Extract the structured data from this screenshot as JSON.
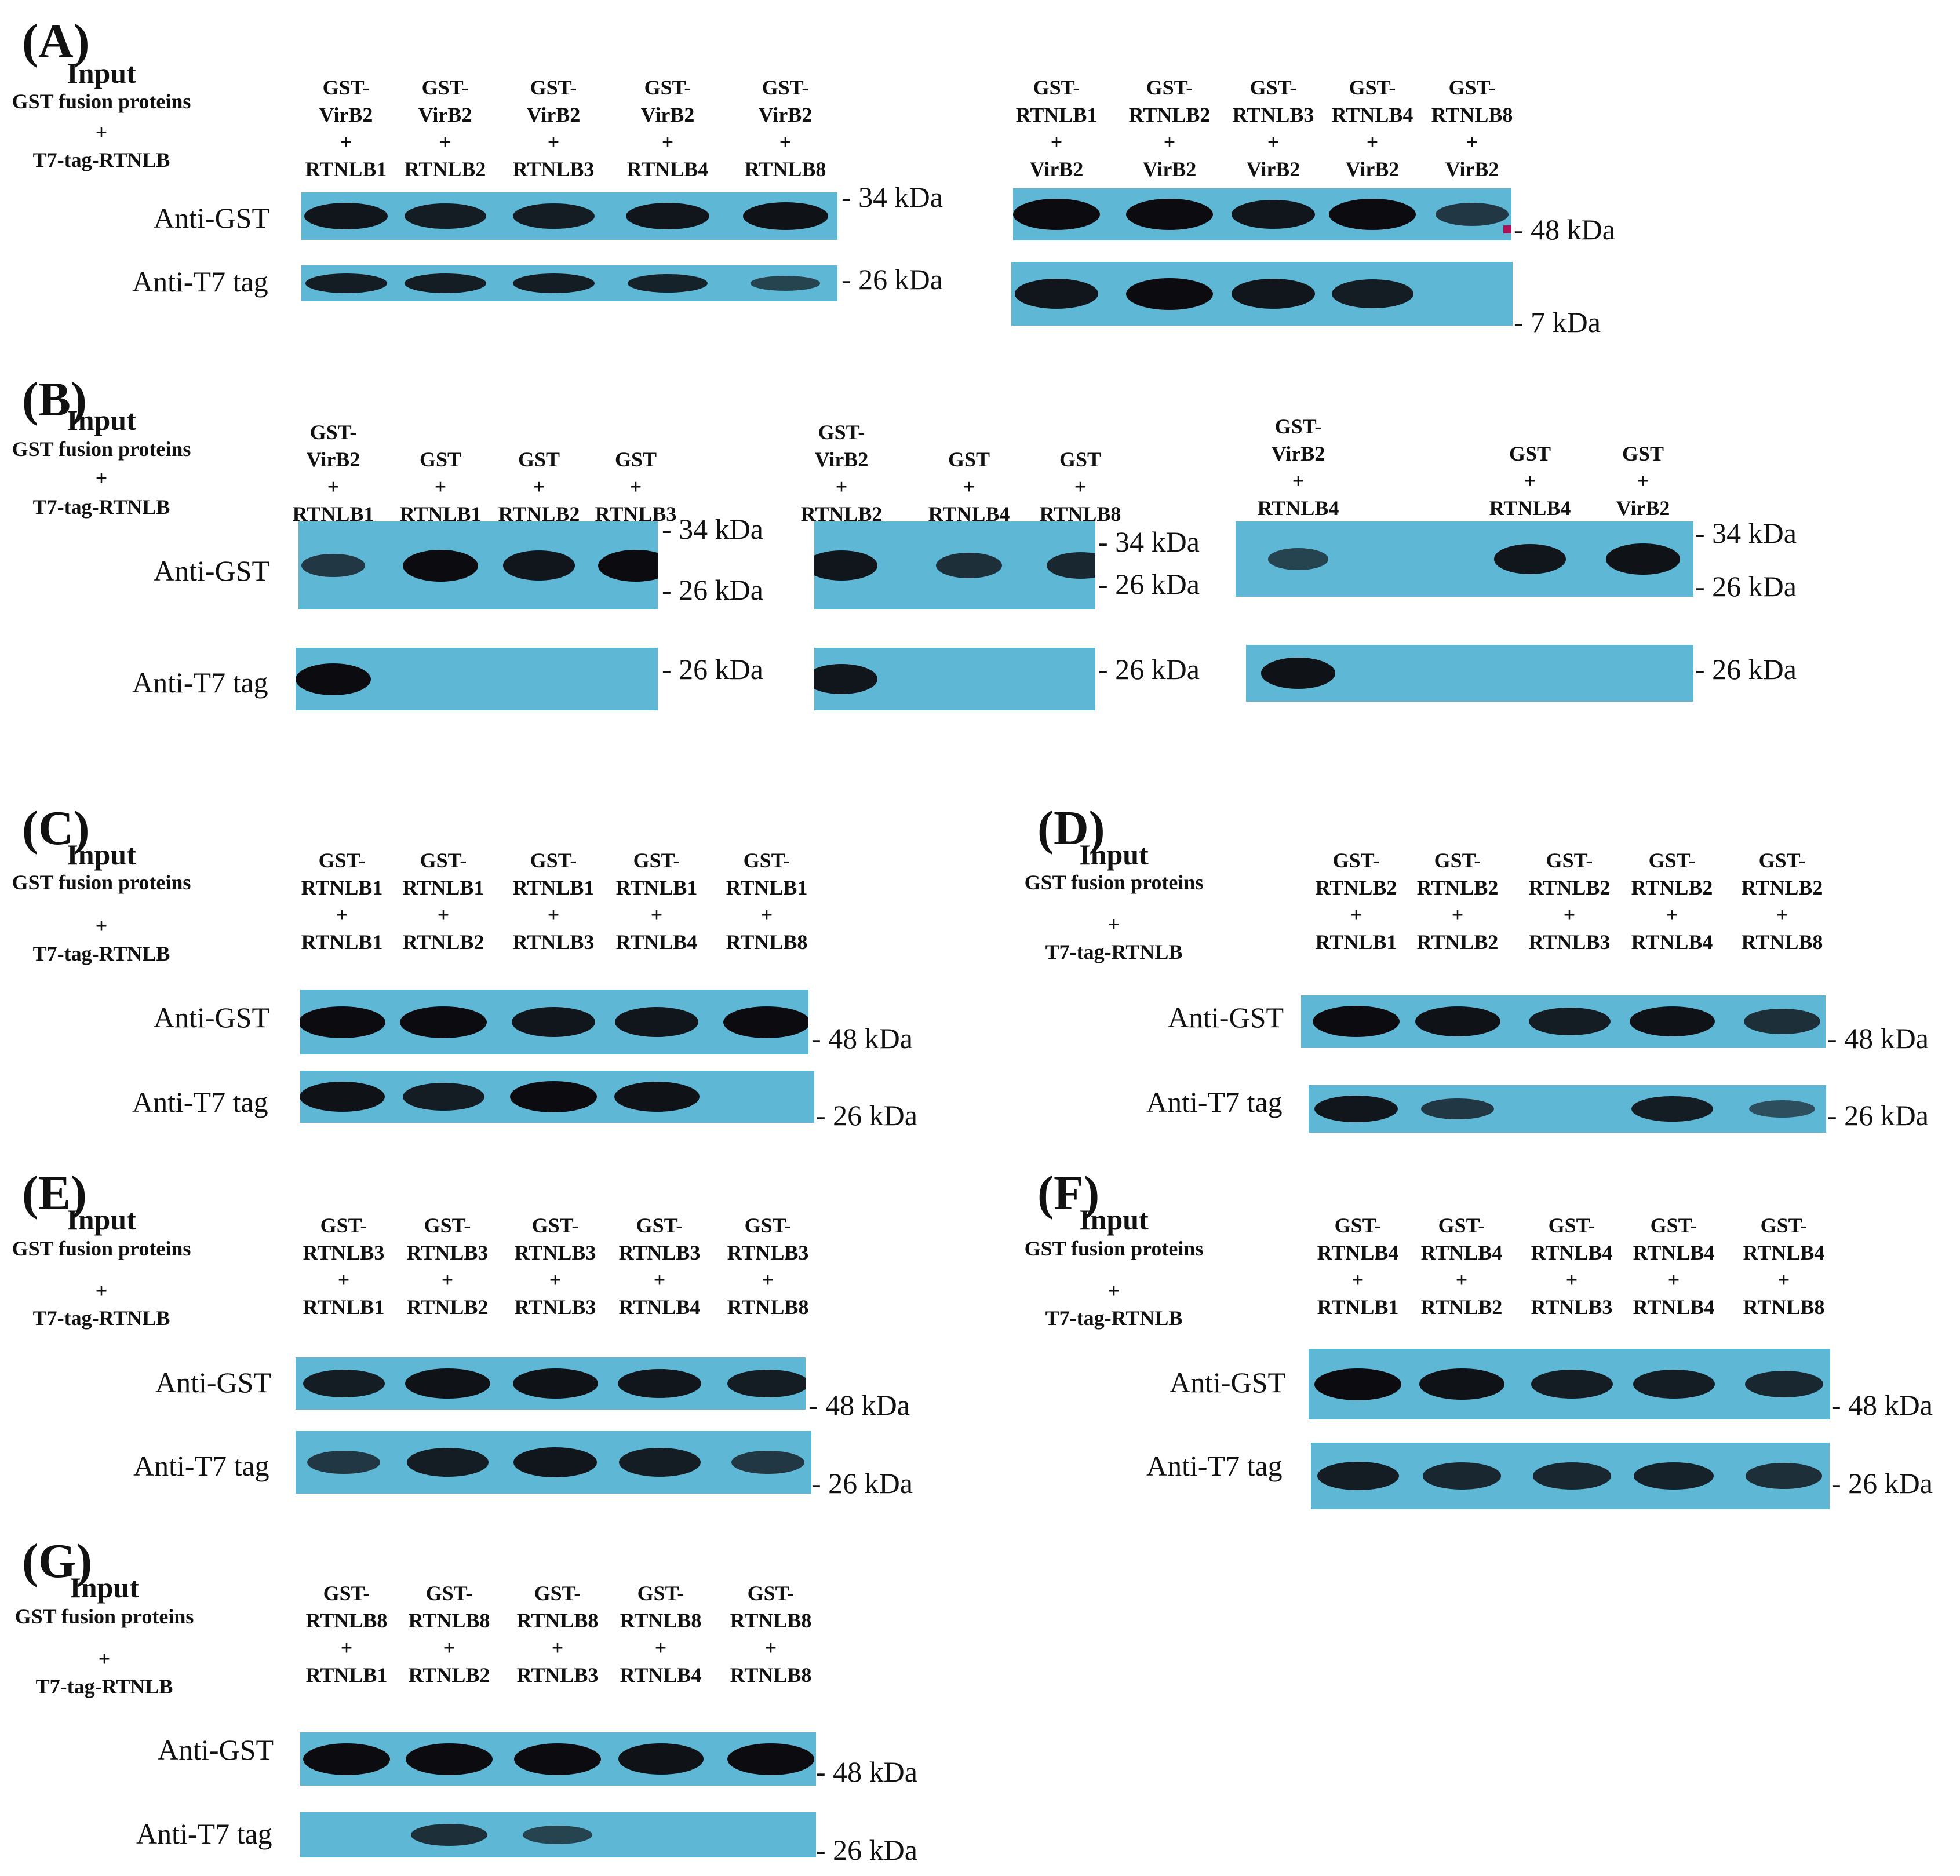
{
  "panel_labels": [
    "(A)",
    "(B)",
    "(C)",
    "(D)",
    "(E)",
    "(F)",
    "(G)"
  ],
  "header": {
    "input": "Input",
    "gst_fusion": "GST fusion proteins",
    "plus": "+",
    "t7_tag": "T7-tag-RTNLB"
  },
  "row_labels": {
    "anti_gst": "Anti-GST",
    "anti_t7": "Anti-T7 tag"
  },
  "markers": {
    "m34": "34 kDa",
    "m26": "26 kDa",
    "m48": "48 kDa",
    "m7": "7 kDa"
  },
  "colors": {
    "membrane": "#5fb7d6",
    "band": "#0c0c10",
    "marker_dot": "#b0125a"
  },
  "panels": [
    {
      "id": "A-left",
      "lanes": [
        [
          "GST-",
          "VirB2",
          "+",
          "RTNLB1"
        ],
        [
          "GST-",
          "VirB2",
          "+",
          "RTNLB2"
        ],
        [
          "GST-",
          "VirB2",
          "+",
          "RTNLB3"
        ],
        [
          "GST-",
          "VirB2",
          "+",
          "RTNLB4"
        ],
        [
          "GST-",
          "VirB2",
          "+",
          "RTNLB8"
        ]
      ],
      "rows": [
        {
          "label": "anti_gst",
          "marker": "m34",
          "band_intensity": [
            0.9,
            0.85,
            0.85,
            0.9,
            0.95
          ]
        },
        {
          "label": "anti_t7",
          "marker": "m26",
          "band_intensity": [
            0.85,
            0.85,
            0.85,
            0.8,
            0.5
          ]
        }
      ]
    },
    {
      "id": "A-right",
      "lanes": [
        [
          "GST-",
          "RTNLB1",
          "+",
          "VirB2"
        ],
        [
          "GST-",
          "RTNLB2",
          "+",
          "VirB2"
        ],
        [
          "GST-",
          "RTNLB3",
          "+",
          "VirB2"
        ],
        [
          "GST-",
          "RTNLB4",
          "+",
          "VirB2"
        ],
        [
          "GST-",
          "RTNLB8",
          "+",
          "VirB2"
        ]
      ],
      "rows": [
        {
          "label": null,
          "marker": "m48",
          "band_intensity": [
            1,
            1,
            0.9,
            1,
            0.6
          ]
        },
        {
          "label": null,
          "marker": "m7",
          "band_intensity": [
            0.9,
            1,
            0.9,
            0.85,
            0
          ]
        }
      ]
    },
    {
      "id": "B-1",
      "lanes": [
        [
          "GST-",
          "VirB2",
          "+",
          "RTNLB1"
        ],
        [
          "GST",
          "+",
          "RTNLB1"
        ],
        [
          "GST",
          "+",
          "RTNLB2"
        ],
        [
          "GST",
          "+",
          "RTNLB3"
        ]
      ],
      "rows": [
        {
          "label": "anti_gst",
          "markers": [
            "m34",
            "m26"
          ],
          "band_intensity": [
            0.6,
            1,
            0.9,
            1
          ]
        },
        {
          "label": "anti_t7",
          "marker": "m26",
          "band_intensity": [
            1,
            0,
            0,
            0
          ]
        }
      ]
    },
    {
      "id": "B-2",
      "lanes": [
        [
          "GST-",
          "VirB2",
          "+",
          "RTNLB2"
        ],
        [
          "GST",
          "+",
          "RTNLB4"
        ],
        [
          "GST",
          "+",
          "RTNLB8"
        ]
      ],
      "rows": [
        {
          "label": null,
          "markers": [
            "m34",
            "m26"
          ],
          "band_intensity": [
            0.9,
            0.7,
            0.75
          ]
        },
        {
          "label": null,
          "marker": "m26",
          "band_intensity": [
            0.9,
            0,
            0
          ]
        }
      ]
    },
    {
      "id": "B-3",
      "lanes": [
        [
          "GST-",
          "VirB2",
          "+",
          "RTNLB4"
        ],
        [
          "GST",
          "+",
          "RTNLB4"
        ],
        [
          "GST",
          "+",
          "VirB2"
        ]
      ],
      "rows": [
        {
          "label": null,
          "markers": [
            "m34",
            "m26"
          ],
          "band_intensity": [
            0.5,
            0.9,
            0.95
          ]
        },
        {
          "label": null,
          "marker": "m26",
          "band_intensity": [
            0.95,
            0,
            0
          ]
        }
      ]
    },
    {
      "id": "C",
      "lanes": [
        [
          "GST-",
          "RTNLB1",
          "+",
          "RTNLB1"
        ],
        [
          "GST-",
          "RTNLB1",
          "+",
          "RTNLB2"
        ],
        [
          "GST-",
          "RTNLB1",
          "+",
          "RTNLB3"
        ],
        [
          "GST-",
          "RTNLB1",
          "+",
          "RTNLB4"
        ],
        [
          "GST-",
          "RTNLB1",
          "+",
          "RTNLB8"
        ]
      ],
      "rows": [
        {
          "label": "anti_gst",
          "marker": "m48",
          "band_intensity": [
            1,
            1,
            0.9,
            0.9,
            1
          ]
        },
        {
          "label": "anti_t7",
          "marker": "m26",
          "band_intensity": [
            0.95,
            0.85,
            1,
            0.95,
            0
          ]
        }
      ]
    },
    {
      "id": "D",
      "lanes": [
        [
          "GST-",
          "RTNLB2",
          "+",
          "RTNLB1"
        ],
        [
          "GST-",
          "RTNLB2",
          "+",
          "RTNLB2"
        ],
        [
          "GST-",
          "RTNLB2",
          "+",
          "RTNLB3"
        ],
        [
          "GST-",
          "RTNLB2",
          "+",
          "RTNLB4"
        ],
        [
          "GST-",
          "RTNLB2",
          "+",
          "RTNLB8"
        ]
      ],
      "rows": [
        {
          "label": "anti_gst",
          "marker": "m48",
          "band_intensity": [
            1,
            0.95,
            0.85,
            0.95,
            0.7
          ]
        },
        {
          "label": "anti_t7",
          "marker": "m26",
          "band_intensity": [
            0.9,
            0.6,
            0,
            0.85,
            0.4
          ]
        }
      ]
    },
    {
      "id": "E",
      "lanes": [
        [
          "GST-",
          "RTNLB3",
          "+",
          "RTNLB1"
        ],
        [
          "GST-",
          "RTNLB3",
          "+",
          "RTNLB2"
        ],
        [
          "GST-",
          "RTNLB3",
          "+",
          "RTNLB3"
        ],
        [
          "GST-",
          "RTNLB3",
          "+",
          "RTNLB4"
        ],
        [
          "GST-",
          "RTNLB3",
          "+",
          "RTNLB8"
        ]
      ],
      "rows": [
        {
          "label": "anti_gst",
          "marker": "m48",
          "band_intensity": [
            0.85,
            0.95,
            0.95,
            0.9,
            0.85
          ]
        },
        {
          "label": "anti_t7",
          "marker": "m26",
          "band_intensity": [
            0.6,
            0.85,
            0.9,
            0.85,
            0.6
          ]
        }
      ]
    },
    {
      "id": "F",
      "lanes": [
        [
          "GST-",
          "RTNLB4",
          "+",
          "RTNLB1"
        ],
        [
          "GST-",
          "RTNLB4",
          "+",
          "RTNLB2"
        ],
        [
          "GST-",
          "RTNLB4",
          "+",
          "RTNLB3"
        ],
        [
          "GST-",
          "RTNLB4",
          "+",
          "RTNLB4"
        ],
        [
          "GST-",
          "RTNLB4",
          "+",
          "RTNLB8"
        ]
      ],
      "rows": [
        {
          "label": "anti_gst",
          "marker": "m48",
          "band_intensity": [
            1,
            0.95,
            0.85,
            0.85,
            0.75
          ]
        },
        {
          "label": "anti_t7",
          "marker": "m26",
          "band_intensity": [
            0.85,
            0.75,
            0.75,
            0.8,
            0.7
          ]
        }
      ]
    },
    {
      "id": "G",
      "lanes": [
        [
          "GST-",
          "RTNLB8",
          "+",
          "RTNLB1"
        ],
        [
          "GST-",
          "RTNLB8",
          "+",
          "RTNLB2"
        ],
        [
          "GST-",
          "RTNLB8",
          "+",
          "RTNLB3"
        ],
        [
          "GST-",
          "RTNLB8",
          "+",
          "RTNLB4"
        ],
        [
          "GST-",
          "RTNLB8",
          "+",
          "RTNLB8"
        ]
      ],
      "rows": [
        {
          "label": "anti_gst",
          "marker": "m48",
          "band_intensity": [
            1,
            1,
            1,
            0.95,
            1
          ]
        },
        {
          "label": "anti_t7",
          "marker": "m26",
          "band_intensity": [
            0,
            0.7,
            0.5,
            0,
            0
          ]
        }
      ]
    }
  ]
}
